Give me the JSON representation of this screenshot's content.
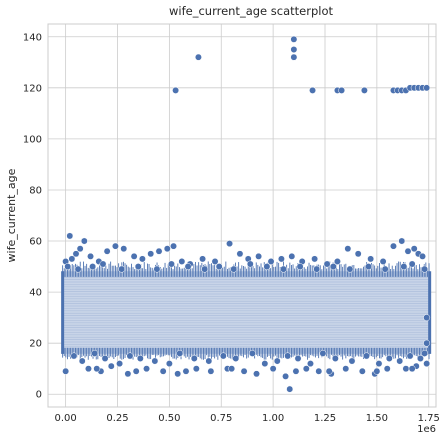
{
  "chart_data": {
    "type": "scatter",
    "title": "wife_current_age scatterplot",
    "xlabel": "",
    "ylabel": "wife_current_age",
    "x_offset_text": "1e6",
    "xlim": [
      -0.085,
      1.785
    ],
    "ylim": [
      -5,
      145
    ],
    "xticks": [
      0.0,
      0.25,
      0.5,
      0.75,
      1.0,
      1.25,
      1.5,
      1.75
    ],
    "xtick_labels": [
      "0.00",
      "0.25",
      "0.50",
      "0.75",
      "1.00",
      "1.25",
      "1.50",
      "1.75"
    ],
    "yticks": [
      0,
      20,
      40,
      60,
      80,
      100,
      120,
      140
    ],
    "ytick_labels": [
      "0",
      "20",
      "40",
      "60",
      "80",
      "100",
      "120",
      "140"
    ],
    "grid": true,
    "dense_band": {
      "x": [
        0.0,
        1.74
      ],
      "y": [
        17,
        47
      ]
    },
    "points": {
      "x": [
        0.53,
        0.64,
        1.1,
        1.1,
        1.1,
        1.19,
        1.31,
        1.33,
        1.44,
        1.58,
        1.6,
        1.62,
        1.64,
        1.66,
        1.68,
        1.7,
        1.72,
        1.74,
        0.0,
        0.01,
        0.03,
        0.05,
        0.07,
        0.09,
        0.12,
        0.16,
        0.2,
        0.24,
        0.28,
        0.33,
        0.37,
        0.41,
        0.45,
        0.49,
        0.52,
        0.56,
        0.6,
        0.66,
        0.72,
        0.79,
        0.84,
        0.88,
        0.93,
        0.99,
        1.04,
        1.09,
        1.14,
        1.2,
        1.26,
        1.31,
        1.36,
        1.41,
        1.47,
        1.53,
        1.58,
        1.62,
        1.65,
        1.68,
        1.7,
        1.72,
        0.04,
        0.08,
        0.14,
        0.19,
        0.26,
        0.31,
        0.36,
        0.43,
        0.5,
        0.55,
        0.62,
        0.69,
        0.76,
        0.82,
        0.9,
        0.96,
        1.02,
        1.07,
        1.12,
        1.18,
        1.24,
        1.3,
        1.38,
        1.45,
        1.51,
        1.56,
        1.61,
        1.66,
        1.71,
        1.73,
        0.0,
        0.11,
        0.17,
        0.22,
        0.3,
        0.39,
        0.47,
        0.54,
        0.63,
        0.7,
        0.78,
        0.86,
        0.92,
        1.0,
        1.06,
        1.11,
        1.16,
        1.22,
        1.28,
        1.35,
        1.43,
        1.49,
        1.55,
        1.64,
        1.69,
        1.74,
        0.02,
        0.06,
        0.13,
        0.18,
        0.27,
        0.35,
        0.44,
        0.51,
        0.59,
        0.67,
        0.74,
        0.81,
        0.89,
        0.97,
        1.05,
        1.13,
        1.21,
        1.29,
        1.37,
        1.46,
        1.54,
        1.63,
        1.67,
        1.73,
        0.0,
        0.15,
        0.34,
        0.58,
        0.8,
        1.08,
        1.27,
        1.5,
        1.67,
        1.74,
        1.74
      ],
      "y": [
        119,
        132,
        139,
        135,
        132,
        119,
        119,
        119,
        119,
        119,
        119,
        119,
        119,
        120,
        120,
        120,
        120,
        120,
        52,
        50,
        53,
        55,
        57,
        60,
        54,
        52,
        56,
        58,
        57,
        54,
        53,
        55,
        56,
        57,
        58,
        52,
        51,
        53,
        52,
        59,
        55,
        53,
        54,
        52,
        53,
        54,
        52,
        53,
        51,
        52,
        57,
        55,
        53,
        52,
        58,
        60,
        56,
        57,
        55,
        54,
        15,
        13,
        16,
        14,
        12,
        15,
        14,
        13,
        12,
        16,
        14,
        13,
        15,
        14,
        16,
        12,
        13,
        15,
        14,
        12,
        16,
        14,
        13,
        15,
        12,
        14,
        13,
        15,
        14,
        16,
        9,
        10,
        9,
        11,
        8,
        10,
        9,
        8,
        10,
        9,
        10,
        9,
        8,
        10,
        7,
        9,
        10,
        9,
        8,
        10,
        9,
        8,
        10,
        10,
        11,
        12,
        62,
        49,
        50,
        51,
        49,
        50,
        49,
        51,
        50,
        49,
        50,
        49,
        51,
        50,
        49,
        50,
        49,
        50,
        49,
        50,
        49,
        50,
        51,
        49,
        9,
        10,
        9,
        9,
        10,
        2,
        9,
        9,
        10,
        20,
        30
      ]
    }
  }
}
